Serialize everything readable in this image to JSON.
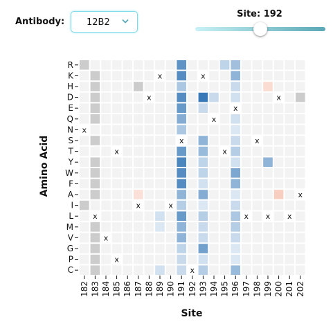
{
  "controls": {
    "antibody_label": "Antibody:",
    "antibody_selected": "12B2",
    "site_label_prefix": "Site: ",
    "site_value": 192,
    "site_min": 182,
    "site_max": 202
  },
  "chart_data": {
    "type": "heatmap",
    "xlabel": "Site",
    "ylabel": "Amino Acid",
    "x_categories": [
      "182",
      "183",
      "184",
      "185",
      "186",
      "187",
      "188",
      "189",
      "190",
      "191",
      "192",
      "193",
      "194",
      "195",
      "196",
      "197",
      "198",
      "199",
      "200",
      "201",
      "202"
    ],
    "y_categories": [
      "R",
      "K",
      "H",
      "D",
      "E",
      "Q",
      "N",
      "S",
      "T",
      "Y",
      "W",
      "F",
      "A",
      "I",
      "L",
      "M",
      "V",
      "G",
      "P",
      "C"
    ],
    "missing_color": "#cccccc",
    "wildtype_marker": "x",
    "colors": {
      "positive": "#2f73b4",
      "negative": "#e8643c",
      "neutral": "#ffffff"
    },
    "value_range": [
      -1,
      1
    ],
    "values": [
      [
        null,
        0,
        0,
        0,
        0,
        0,
        0,
        0,
        0,
        0.75,
        0,
        0,
        0,
        0.25,
        0.4,
        0,
        0,
        0,
        0,
        0,
        0
      ],
      [
        0,
        null,
        0,
        0,
        0,
        0,
        0,
        "x",
        0,
        0.8,
        0,
        "x",
        0,
        0,
        0.5,
        0,
        0,
        0,
        0,
        0,
        0
      ],
      [
        0,
        null,
        0,
        0,
        0,
        null,
        0,
        0,
        0,
        0.35,
        0,
        0,
        0,
        0,
        0.2,
        0,
        0,
        -0.15,
        0,
        0,
        0
      ],
      [
        0,
        null,
        0,
        0,
        0,
        0,
        "x",
        0,
        0,
        0.8,
        0,
        0.95,
        0.2,
        0,
        0.15,
        0,
        0,
        0,
        "x",
        0,
        null
      ],
      [
        0,
        null,
        0,
        0,
        0,
        0,
        0,
        0,
        0,
        0.7,
        0,
        0.2,
        0,
        0,
        "x",
        0,
        0,
        0,
        0,
        0,
        0
      ],
      [
        0,
        null,
        0,
        0,
        0,
        0,
        0,
        0,
        0,
        0.55,
        0,
        0,
        "x",
        0,
        0.15,
        0,
        0,
        0,
        0,
        0,
        0
      ],
      [
        "x",
        0,
        0,
        0,
        0,
        0,
        0,
        0,
        0,
        0.35,
        0,
        0,
        0,
        0,
        0.1,
        0,
        0,
        0,
        0,
        0,
        0
      ],
      [
        0,
        null,
        0,
        0,
        0,
        0,
        0,
        0,
        0,
        "x",
        0,
        0.5,
        0,
        0,
        0.2,
        0,
        "x",
        0,
        0,
        0,
        0
      ],
      [
        0,
        0,
        0,
        "x",
        0,
        0,
        0,
        0,
        0,
        0.7,
        0,
        0.45,
        0,
        "x",
        0.3,
        0,
        0,
        0,
        0,
        0,
        0
      ],
      [
        0,
        null,
        0,
        0,
        0,
        0,
        0,
        0,
        0,
        0.85,
        0,
        0.25,
        0,
        0,
        0.15,
        0,
        0,
        0.5,
        0,
        0,
        0
      ],
      [
        0,
        null,
        0,
        0,
        0,
        0,
        0,
        0,
        0,
        0.8,
        0,
        0.25,
        0,
        0,
        0.6,
        0,
        0,
        0,
        0,
        0,
        0
      ],
      [
        0,
        null,
        0,
        0,
        0,
        0,
        0,
        0,
        0,
        0.8,
        0,
        0.15,
        0,
        0,
        0.5,
        0,
        0,
        0,
        0,
        0,
        0
      ],
      [
        0,
        null,
        0,
        0,
        0,
        -0.12,
        0,
        0,
        0,
        0.5,
        0,
        0.55,
        0,
        0,
        0.1,
        0,
        0,
        0,
        -0.25,
        0,
        "x"
      ],
      [
        null,
        0,
        0,
        0,
        0,
        "x",
        0,
        0,
        "x",
        0.3,
        0,
        0.1,
        0,
        0,
        0.2,
        0,
        0,
        0,
        0,
        0,
        0
      ],
      [
        0,
        "x",
        0,
        0,
        0,
        0,
        0,
        0.15,
        0,
        0.7,
        0,
        0.3,
        0,
        0,
        0.35,
        "x",
        0,
        "x",
        0,
        "x",
        0
      ],
      [
        0,
        null,
        0,
        0,
        0,
        0,
        0,
        0.1,
        0,
        0.5,
        0,
        0.2,
        0,
        0,
        0.3,
        0,
        0,
        0,
        0,
        0,
        0
      ],
      [
        0,
        null,
        "x",
        0,
        0,
        0,
        0,
        0,
        0,
        0.5,
        0,
        0.2,
        0,
        0,
        0.2,
        0,
        0,
        0,
        0,
        0,
        0
      ],
      [
        0,
        null,
        0,
        0,
        0,
        0,
        0,
        0,
        0,
        0.25,
        0,
        0.65,
        0,
        0,
        0.1,
        0,
        0,
        0,
        0,
        0,
        0
      ],
      [
        0,
        null,
        0,
        "x",
        0,
        0,
        0,
        0,
        0,
        0.2,
        0,
        0.15,
        0,
        0,
        0.1,
        0,
        0,
        0,
        0,
        0,
        0
      ],
      [
        0,
        null,
        0,
        0,
        0,
        0,
        0,
        0.15,
        0,
        0.2,
        "x",
        0.3,
        0,
        0,
        0.45,
        0,
        0,
        0,
        0,
        0,
        0
      ]
    ]
  }
}
